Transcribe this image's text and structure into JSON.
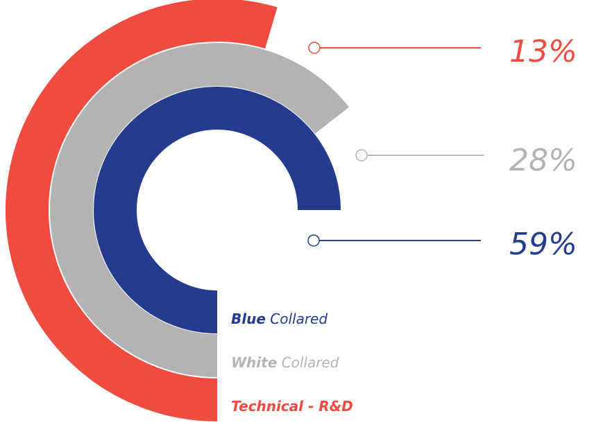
{
  "chart_data": {
    "type": "radial-bar",
    "series": [
      {
        "label_bold": "Blue",
        "label_rest": " Collared",
        "percent_label": "59%",
        "color": "#233c8e"
      },
      {
        "label_bold": "White",
        "label_rest": " Collared",
        "percent_label": "28%",
        "color": "#b3b3b3"
      },
      {
        "label_bold": "Technical - R&D",
        "label_rest": "",
        "percent_label": "13%",
        "color": "#ef4b3f"
      }
    ]
  }
}
